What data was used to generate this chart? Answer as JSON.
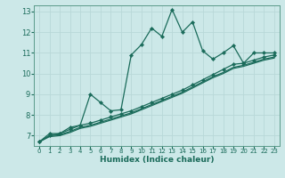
{
  "xlabel": "Humidex (Indice chaleur)",
  "bg_color": "#cce8e8",
  "grid_color": "#aacccc",
  "line_color": "#1a6b5a",
  "xlim": [
    -0.5,
    23.5
  ],
  "ylim": [
    6.5,
    13.3
  ],
  "yticks": [
    7,
    8,
    9,
    10,
    11,
    12,
    13
  ],
  "xticks": [
    0,
    1,
    2,
    3,
    4,
    5,
    6,
    7,
    8,
    9,
    10,
    11,
    12,
    13,
    14,
    15,
    16,
    17,
    18,
    19,
    20,
    21,
    22,
    23
  ],
  "series1_x": [
    0,
    1,
    2,
    3,
    4,
    5,
    6,
    7,
    8,
    9,
    10,
    11,
    12,
    13,
    14,
    15,
    16,
    17,
    18,
    19,
    20,
    21,
    22,
    23
  ],
  "series1_y": [
    6.7,
    7.1,
    7.1,
    7.4,
    7.5,
    9.0,
    8.6,
    8.2,
    8.25,
    10.9,
    11.4,
    12.2,
    11.8,
    13.1,
    12.0,
    12.5,
    11.1,
    10.7,
    11.0,
    11.35,
    10.5,
    11.0,
    11.0,
    11.0
  ],
  "series2_x": [
    0,
    1,
    2,
    3,
    4,
    5,
    6,
    7,
    8,
    9,
    10,
    11,
    12,
    13,
    14,
    15,
    16,
    17,
    18,
    19,
    20,
    21,
    22,
    23
  ],
  "series2_y": [
    6.7,
    7.0,
    7.1,
    7.3,
    7.5,
    7.6,
    7.75,
    7.9,
    8.05,
    8.2,
    8.4,
    8.6,
    8.8,
    9.0,
    9.2,
    9.45,
    9.7,
    9.95,
    10.2,
    10.45,
    10.5,
    10.65,
    10.8,
    10.9
  ],
  "series3_x": [
    0,
    1,
    2,
    3,
    4,
    5,
    6,
    7,
    8,
    9,
    10,
    11,
    12,
    13,
    14,
    15,
    16,
    17,
    18,
    19,
    20,
    21,
    22,
    23
  ],
  "series3_y": [
    6.7,
    7.0,
    7.05,
    7.2,
    7.4,
    7.5,
    7.65,
    7.8,
    7.95,
    8.1,
    8.3,
    8.5,
    8.7,
    8.9,
    9.1,
    9.35,
    9.6,
    9.85,
    10.05,
    10.3,
    10.4,
    10.55,
    10.7,
    10.8
  ],
  "series4_x": [
    0,
    1,
    2,
    3,
    4,
    5,
    6,
    7,
    8,
    9,
    10,
    11,
    12,
    13,
    14,
    15,
    16,
    17,
    18,
    19,
    20,
    21,
    22,
    23
  ],
  "series4_y": [
    6.7,
    6.95,
    7.0,
    7.15,
    7.35,
    7.45,
    7.6,
    7.75,
    7.9,
    8.05,
    8.25,
    8.45,
    8.65,
    8.85,
    9.05,
    9.3,
    9.55,
    9.8,
    10.0,
    10.25,
    10.35,
    10.5,
    10.65,
    10.75
  ]
}
